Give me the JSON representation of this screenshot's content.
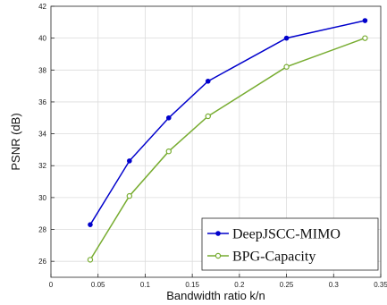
{
  "chart_data": {
    "type": "line",
    "title": "",
    "xlabel": "Bandwidth ratio k/n",
    "ylabel": "PSNR (dB)",
    "xlim": [
      0,
      0.35
    ],
    "ylim": [
      25,
      42
    ],
    "xticks": [
      0,
      0.05,
      0.1,
      0.15,
      0.2,
      0.25,
      0.3,
      0.35
    ],
    "xtick_labels": [
      "0",
      "0.05",
      "0.1",
      "0.15",
      "0.2",
      "0.25",
      "0.3",
      "0.35"
    ],
    "yticks": [
      26,
      28,
      30,
      32,
      34,
      36,
      38,
      40,
      42
    ],
    "ytick_labels": [
      "26",
      "28",
      "30",
      "32",
      "34",
      "36",
      "38",
      "40",
      "42"
    ],
    "grid": true,
    "legend_position": "bottom-right",
    "series": [
      {
        "name": "DeepJSCC-MIMO",
        "color": "#0000cc",
        "marker": "filled-circle",
        "x": [
          0.0417,
          0.0833,
          0.125,
          0.1667,
          0.25,
          0.3333
        ],
        "y": [
          28.3,
          32.3,
          35.0,
          37.3,
          40.0,
          41.1
        ]
      },
      {
        "name": "BPG-Capacity",
        "color": "#77ac30",
        "marker": "open-circle",
        "x": [
          0.0417,
          0.0833,
          0.125,
          0.1667,
          0.25,
          0.3333
        ],
        "y": [
          26.1,
          30.1,
          32.9,
          35.1,
          38.2,
          40.0
        ]
      }
    ]
  }
}
